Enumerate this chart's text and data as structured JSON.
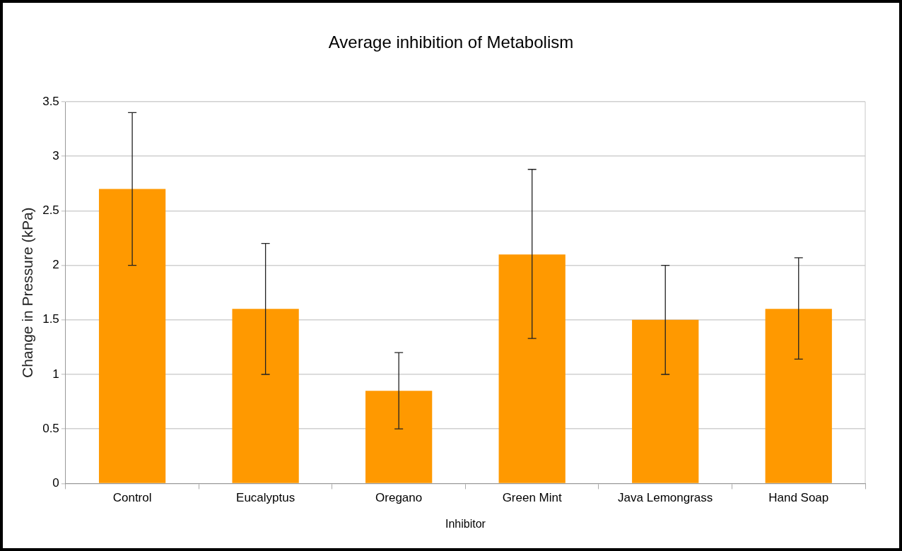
{
  "chart_data": {
    "type": "bar",
    "title": "Average inhibition of Metabolism",
    "xlabel": "Inhibitor",
    "ylabel": "Change in Pressure (kPa)",
    "categories": [
      "Control",
      "Eucalyptus",
      "Oregano",
      "Green Mint",
      "Java Lemongrass",
      "Hand Soap"
    ],
    "values": [
      2.7,
      1.6,
      0.85,
      2.1,
      1.5,
      1.6
    ],
    "errors": [
      [
        2.0,
        3.4
      ],
      [
        1.0,
        2.2
      ],
      [
        0.5,
        1.2
      ],
      [
        1.33,
        2.88
      ],
      [
        1.0,
        2.0
      ],
      [
        1.14,
        2.07
      ]
    ],
    "color": "#ff9900",
    "ylim": [
      0,
      3.5
    ],
    "yticks": [
      0,
      0.5,
      1,
      1.5,
      2,
      2.5,
      3,
      3.5
    ],
    "grid": "y",
    "legend": false
  }
}
